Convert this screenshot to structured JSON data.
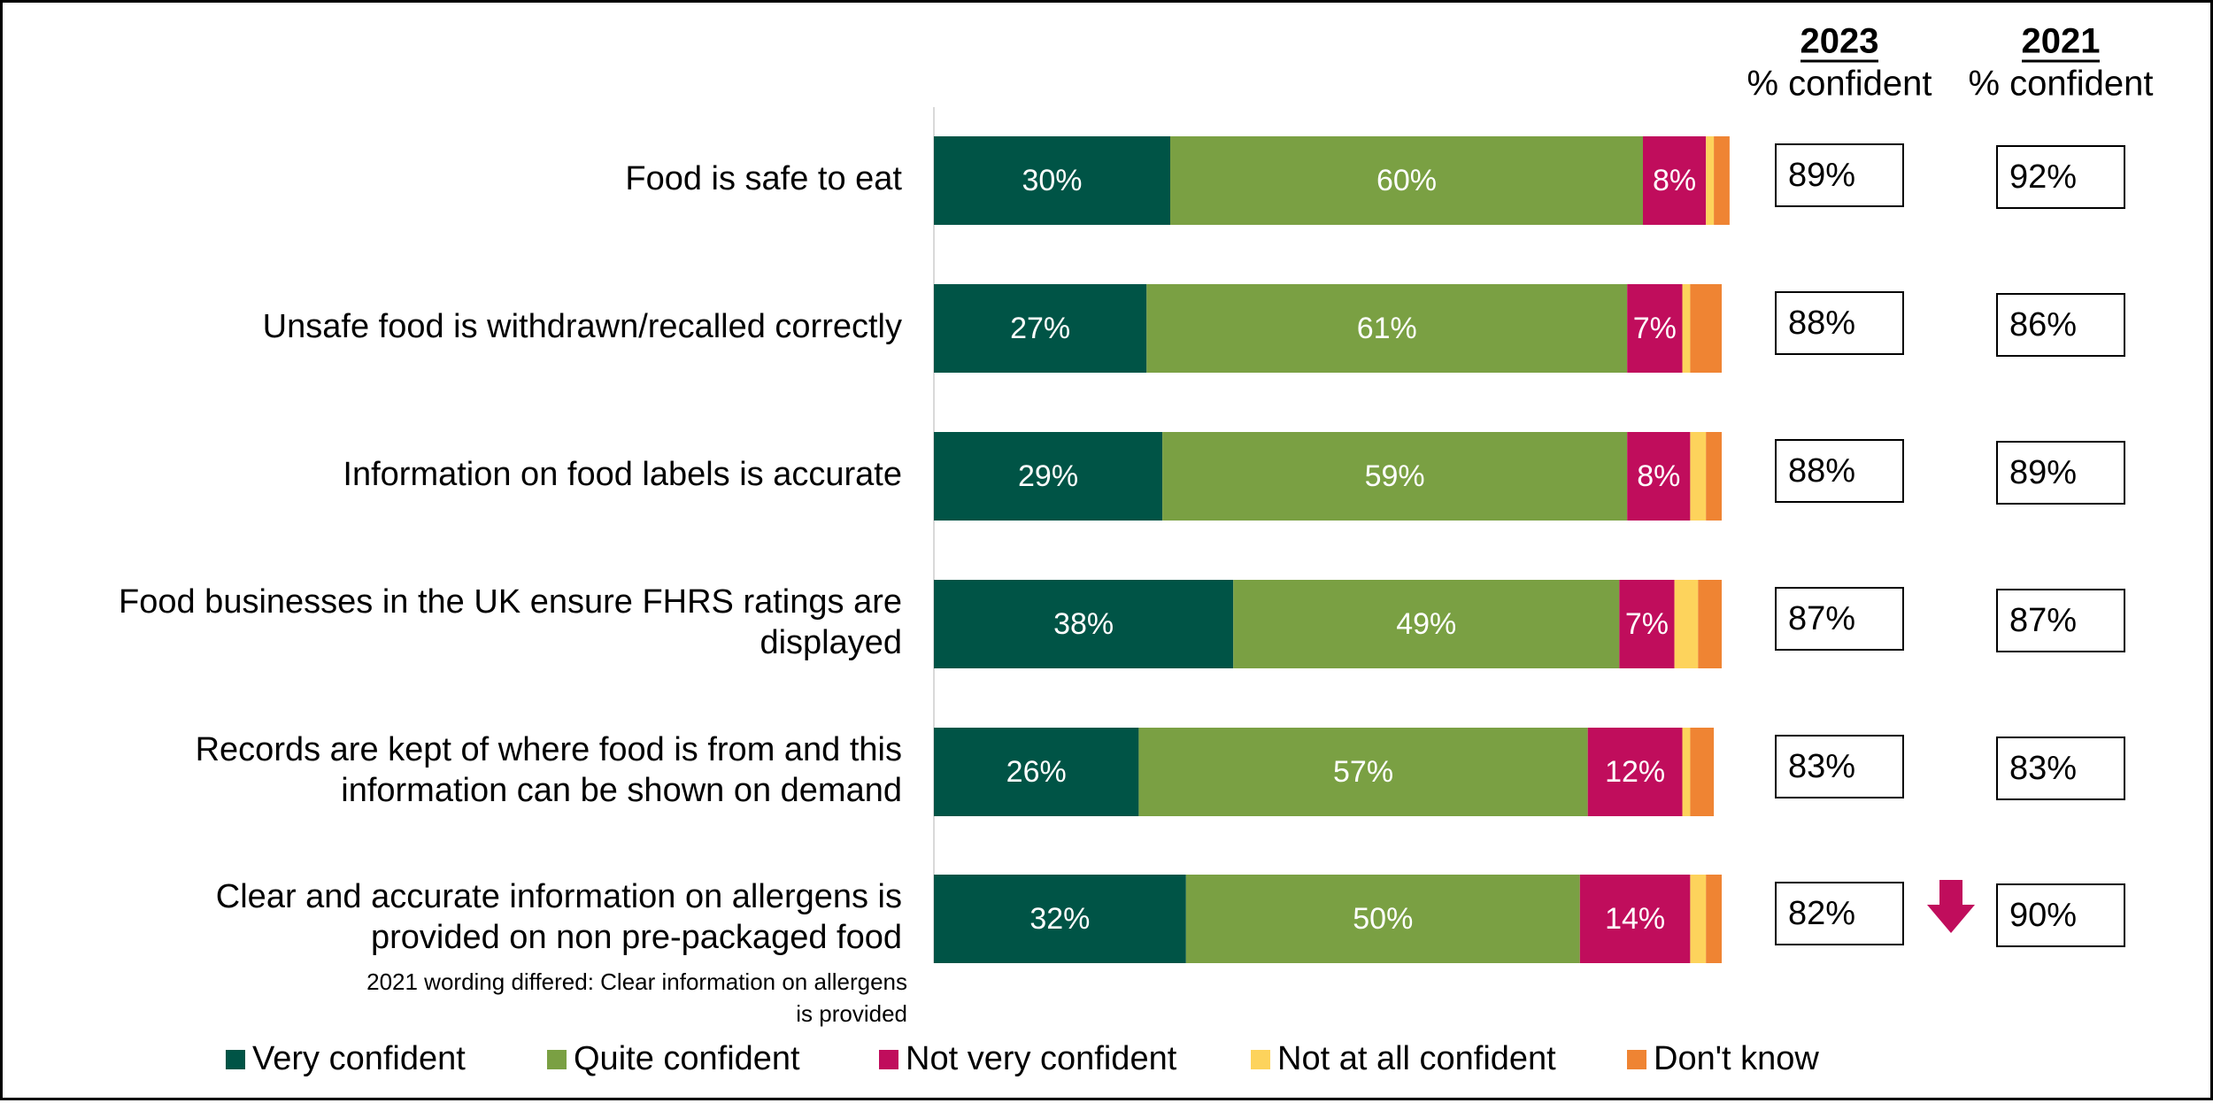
{
  "chart_data": {
    "type": "bar",
    "orientation": "horizontal",
    "stacked": true,
    "categories": [
      "Food is safe to eat",
      "Unsafe food is withdrawn/recalled correctly",
      "Information on food labels is accurate",
      "Food businesses in the UK ensure FHRS ratings are displayed",
      "Records are kept of where food is from and this information can be shown on demand",
      "Clear and accurate information on allergens is provided on non pre-packaged food"
    ],
    "category_lines": [
      [
        "Food is safe to eat"
      ],
      [
        "Unsafe food is withdrawn/recalled correctly"
      ],
      [
        "Information on food labels is accurate"
      ],
      [
        "Food businesses in the UK ensure FHRS ratings are",
        "displayed"
      ],
      [
        "Records are kept of where food is from and this",
        "information can be shown on demand"
      ],
      [
        "Clear and accurate information on allergens is",
        "provided on non pre-packaged food"
      ]
    ],
    "series": [
      {
        "name": "Very confident",
        "color": "#005446",
        "values": [
          30,
          27,
          29,
          38,
          26,
          32
        ],
        "labels": [
          "30%",
          "27%",
          "29%",
          "38%",
          "26%",
          "32%"
        ]
      },
      {
        "name": "Quite confident",
        "color": "#7AA043",
        "values": [
          60,
          61,
          59,
          49,
          57,
          50
        ],
        "labels": [
          "60%",
          "61%",
          "59%",
          "49%",
          "57%",
          "50%"
        ]
      },
      {
        "name": "Not very confident",
        "color": "#C00D5C",
        "values": [
          8,
          7,
          8,
          7,
          12,
          14
        ],
        "labels": [
          "8%",
          "7%",
          "8%",
          "7%",
          "12%",
          "14%"
        ]
      },
      {
        "name": "Not at all confident",
        "color": "#FDD35C",
        "values": [
          1,
          1,
          2,
          3,
          1,
          2
        ],
        "labels": [
          "",
          "",
          "",
          "",
          "",
          ""
        ]
      },
      {
        "name": "Don't know",
        "color": "#EF8433",
        "values": [
          2,
          4,
          2,
          3,
          3,
          2
        ],
        "labels": [
          "",
          "",
          "",
          "",
          "",
          ""
        ]
      }
    ],
    "xlim": [
      0,
      100
    ],
    "legend_position": "bottom",
    "annotation": [
      "2021 wording differed: Clear information on allergens",
      "is provided"
    ],
    "comparison": {
      "columns": [
        {
          "year": "2023",
          "subtitle": "% confident",
          "values": [
            "89%",
            "88%",
            "88%",
            "87%",
            "83%",
            "82%"
          ]
        },
        {
          "year": "2021",
          "subtitle": "% confident",
          "values": [
            "92%",
            "86%",
            "89%",
            "87%",
            "83%",
            "90%"
          ]
        }
      ],
      "significant_decrease_rows": [
        5
      ],
      "decrease_color": "#C00D5C"
    }
  }
}
